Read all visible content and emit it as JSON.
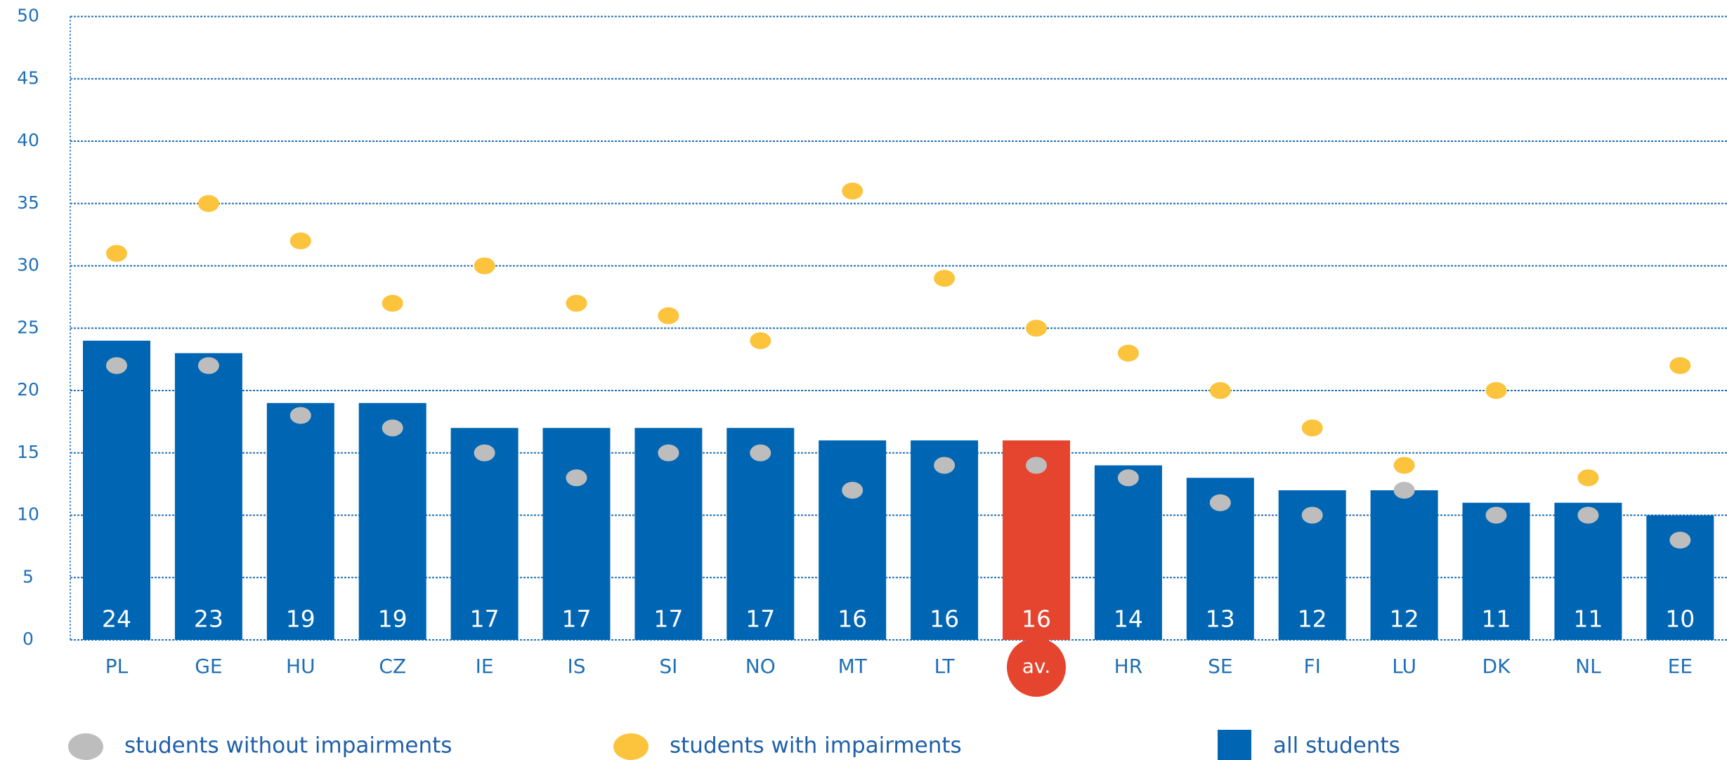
{
  "chart_data": {
    "type": "bar",
    "categories": [
      "PL",
      "GE",
      "HU",
      "CZ",
      "IE",
      "IS",
      "SI",
      "NO",
      "MT",
      "LT",
      "av.",
      "HR",
      "SE",
      "FI",
      "LU",
      "DK",
      "NL",
      "EE"
    ],
    "series": [
      {
        "name": "students without impairments",
        "kind": "dot",
        "color": "#bdbdbd",
        "values": [
          22,
          22,
          18,
          17,
          15,
          13,
          15,
          15,
          12,
          14,
          14,
          13,
          11,
          10,
          12,
          10,
          10,
          8
        ]
      },
      {
        "name": "students with impairments",
        "kind": "dot",
        "color": "#fcc33c",
        "values": [
          31,
          35,
          32,
          27,
          30,
          27,
          26,
          24,
          36,
          29,
          25,
          23,
          20,
          17,
          14,
          20,
          13,
          22
        ]
      },
      {
        "name": "all students",
        "kind": "bar",
        "color": "#0066b3",
        "colors": [
          "#0066b3",
          "#0066b3",
          "#0066b3",
          "#0066b3",
          "#0066b3",
          "#0066b3",
          "#0066b3",
          "#0066b3",
          "#0066b3",
          "#0066b3",
          "#e5452e",
          "#0066b3",
          "#0066b3",
          "#0066b3",
          "#0066b3",
          "#0066b3",
          "#0066b3",
          "#0066b3"
        ],
        "values": [
          24,
          23,
          19,
          19,
          17,
          17,
          17,
          17,
          16,
          16,
          16,
          14,
          13,
          12,
          12,
          11,
          11,
          10
        ]
      }
    ],
    "ylim": [
      0,
      50
    ],
    "yticks": [
      0,
      5,
      10,
      15,
      20,
      25,
      30,
      35,
      40,
      45,
      50
    ],
    "grid": true
  }
}
